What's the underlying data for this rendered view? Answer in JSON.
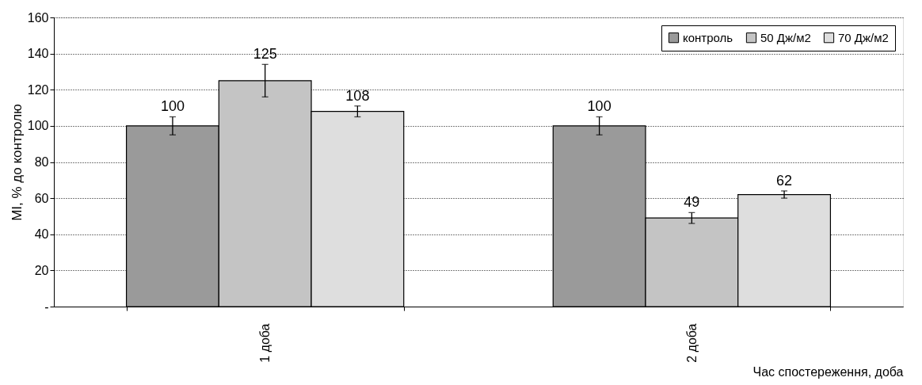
{
  "chart_data": {
    "type": "bar",
    "ylabel": "MI, % до контролю",
    "xlabel": "Час спостереження, доба",
    "categories": [
      "1 доба",
      "2 доба"
    ],
    "series": [
      {
        "name": "контроль",
        "color": "#9a9a9a",
        "values": [
          100,
          100
        ],
        "errors": [
          5,
          5
        ]
      },
      {
        "name": "50 Дж/м2",
        "color": "#c4c4c4",
        "values": [
          125,
          49
        ],
        "errors": [
          9,
          3
        ]
      },
      {
        "name": "70 Дж/м2",
        "color": "#dedede",
        "values": [
          108,
          62
        ],
        "errors": [
          3,
          2
        ]
      }
    ],
    "ylim": [
      0,
      160
    ],
    "yticks": [
      {
        "value": 0,
        "label": "-"
      },
      20,
      40,
      60,
      80,
      100,
      120,
      140,
      160
    ],
    "grid": "y",
    "legend": "top right",
    "data_labels": true
  }
}
